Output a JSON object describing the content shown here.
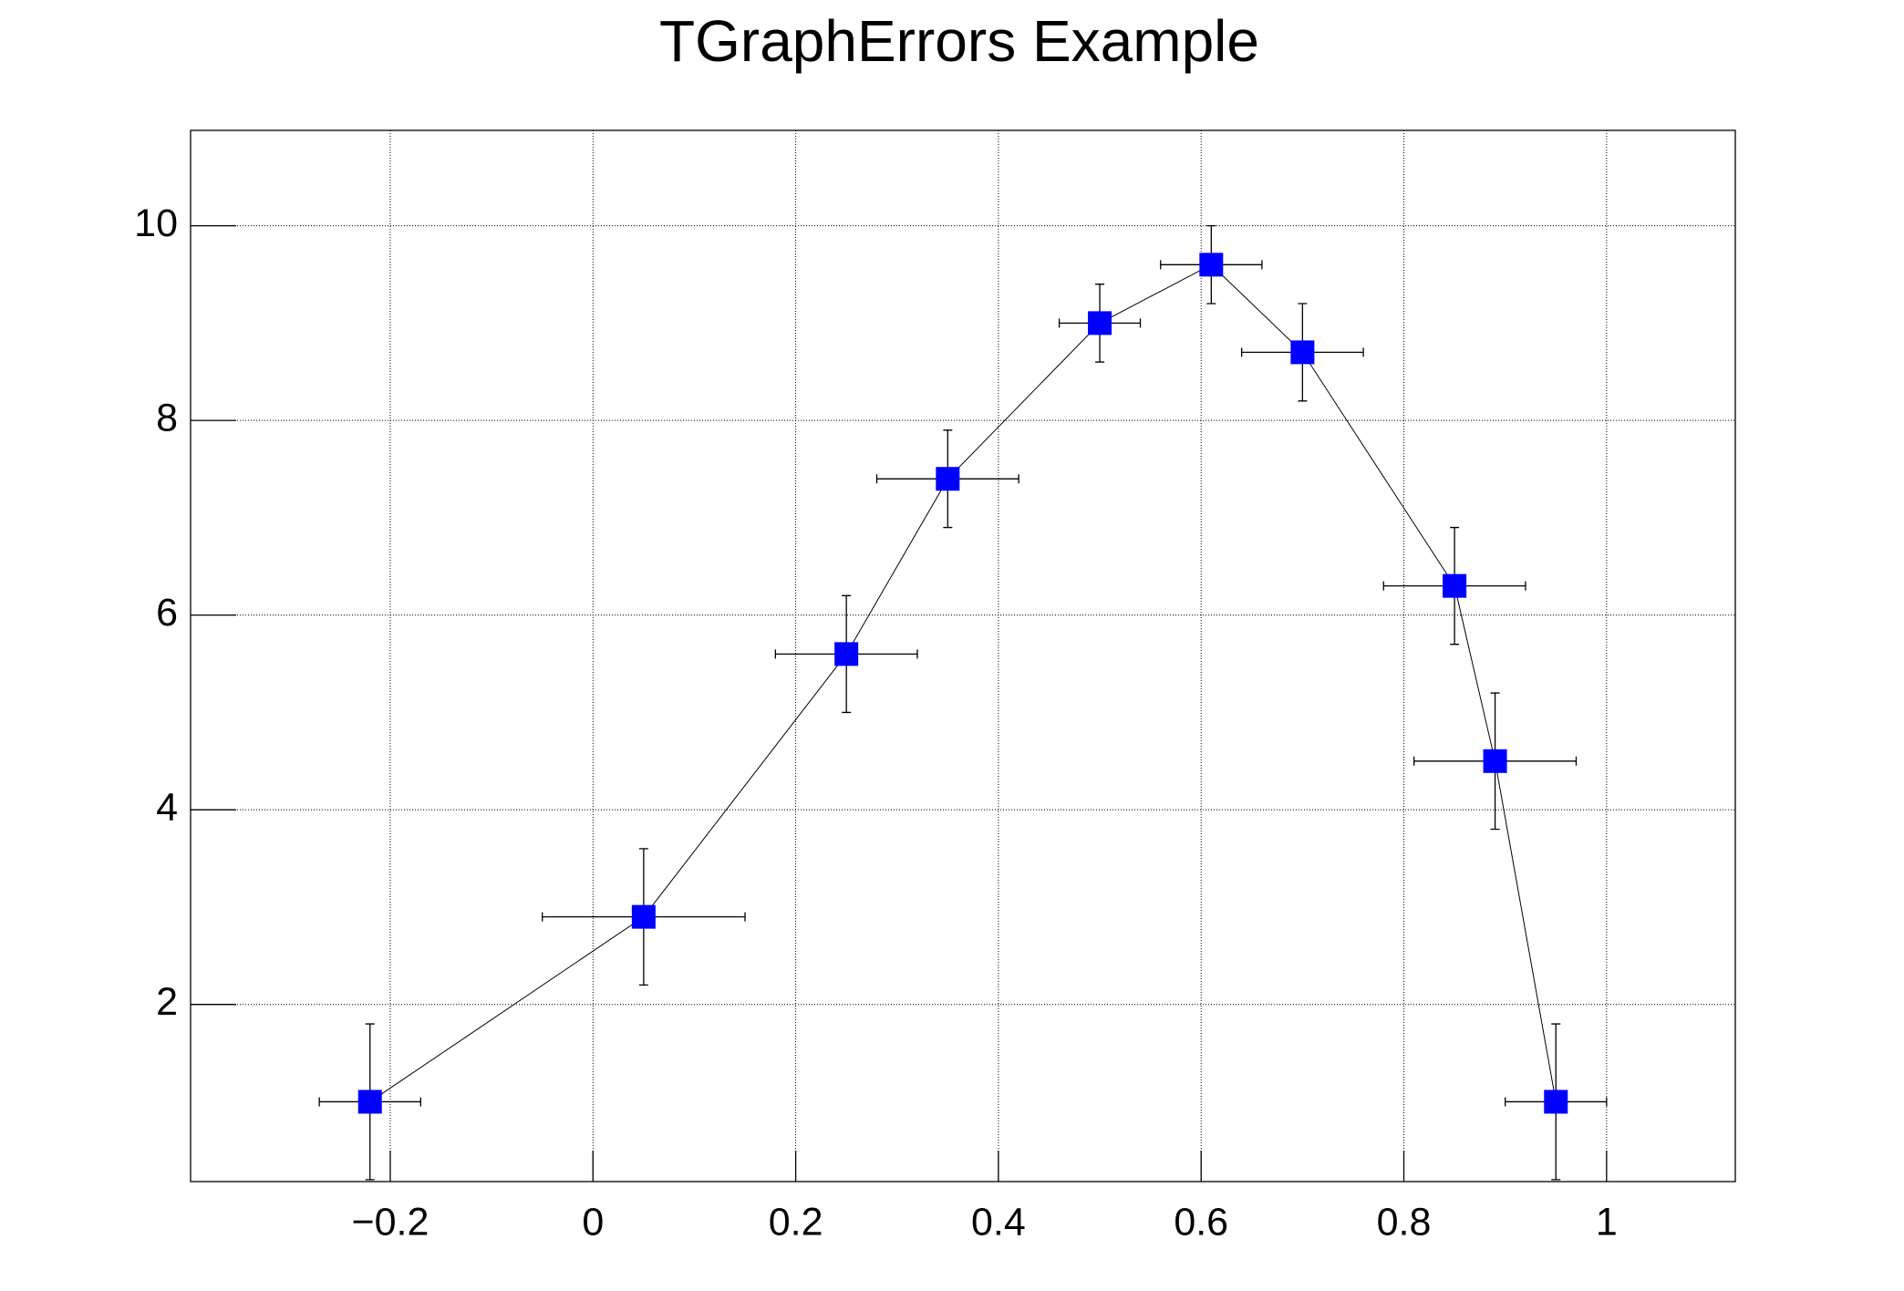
{
  "chart_data": {
    "type": "scatter",
    "title": "TGraphErrors Example",
    "x": [
      -0.22,
      0.05,
      0.25,
      0.35,
      0.5,
      0.61,
      0.7,
      0.85,
      0.89,
      0.95
    ],
    "values": [
      1,
      2.9,
      5.6,
      7.4,
      9,
      9.6,
      8.7,
      6.3,
      4.5,
      1
    ],
    "ex": [
      0.05,
      0.1,
      0.07,
      0.07,
      0.04,
      0.05,
      0.06,
      0.07,
      0.08,
      0.05
    ],
    "ey": [
      0.8,
      0.7,
      0.6,
      0.5,
      0.4,
      0.4,
      0.5,
      0.6,
      0.7,
      0.8
    ],
    "color": "#0000ff",
    "line_color": "#000000",
    "xlim": [
      -0.397,
      1.127
    ],
    "ylim": [
      0.18,
      10.98
    ],
    "xticks": [
      {
        "value": -0.2,
        "label": "−0.2"
      },
      0,
      0.2,
      0.4,
      0.6,
      0.8,
      1
    ],
    "yticks": [
      2,
      4,
      6,
      8,
      10
    ],
    "grid": true
  }
}
